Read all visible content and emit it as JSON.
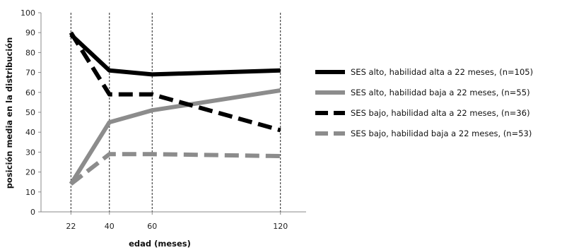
{
  "chart_data": {
    "type": "line",
    "title": "",
    "xlabel": "edad (meses)",
    "ylabel": "posición media en la distribución",
    "xlim": [
      8,
      132
    ],
    "ylim": [
      0,
      100
    ],
    "x_ticks": [
      22,
      40,
      60,
      120
    ],
    "y_ticks": [
      0,
      10,
      20,
      30,
      40,
      50,
      60,
      70,
      80,
      90,
      100
    ],
    "vertical_reference_lines": [
      22,
      40,
      60,
      120
    ],
    "x": [
      22,
      40,
      60,
      120
    ],
    "series": [
      {
        "name": "SES alto, habilidad alta a 22 meses, (n=105)",
        "values": [
          89,
          71,
          69,
          71
        ],
        "color": "#000000",
        "dashed": false
      },
      {
        "name": "SES alto, habilidad baja a 22 meses, (n=55)",
        "values": [
          14,
          45,
          51,
          61
        ],
        "color": "#8c8c8c",
        "dashed": false
      },
      {
        "name": "SES bajo, habilidad alta a 22 meses, (n=36)",
        "values": [
          90,
          59,
          59,
          41
        ],
        "color": "#000000",
        "dashed": true
      },
      {
        "name": "SES bajo, habilidad baja a 22 meses, (n=53)",
        "values": [
          14,
          29,
          29,
          28
        ],
        "color": "#8c8c8c",
        "dashed": true
      }
    ],
    "legend_position": "right",
    "grid": false
  }
}
